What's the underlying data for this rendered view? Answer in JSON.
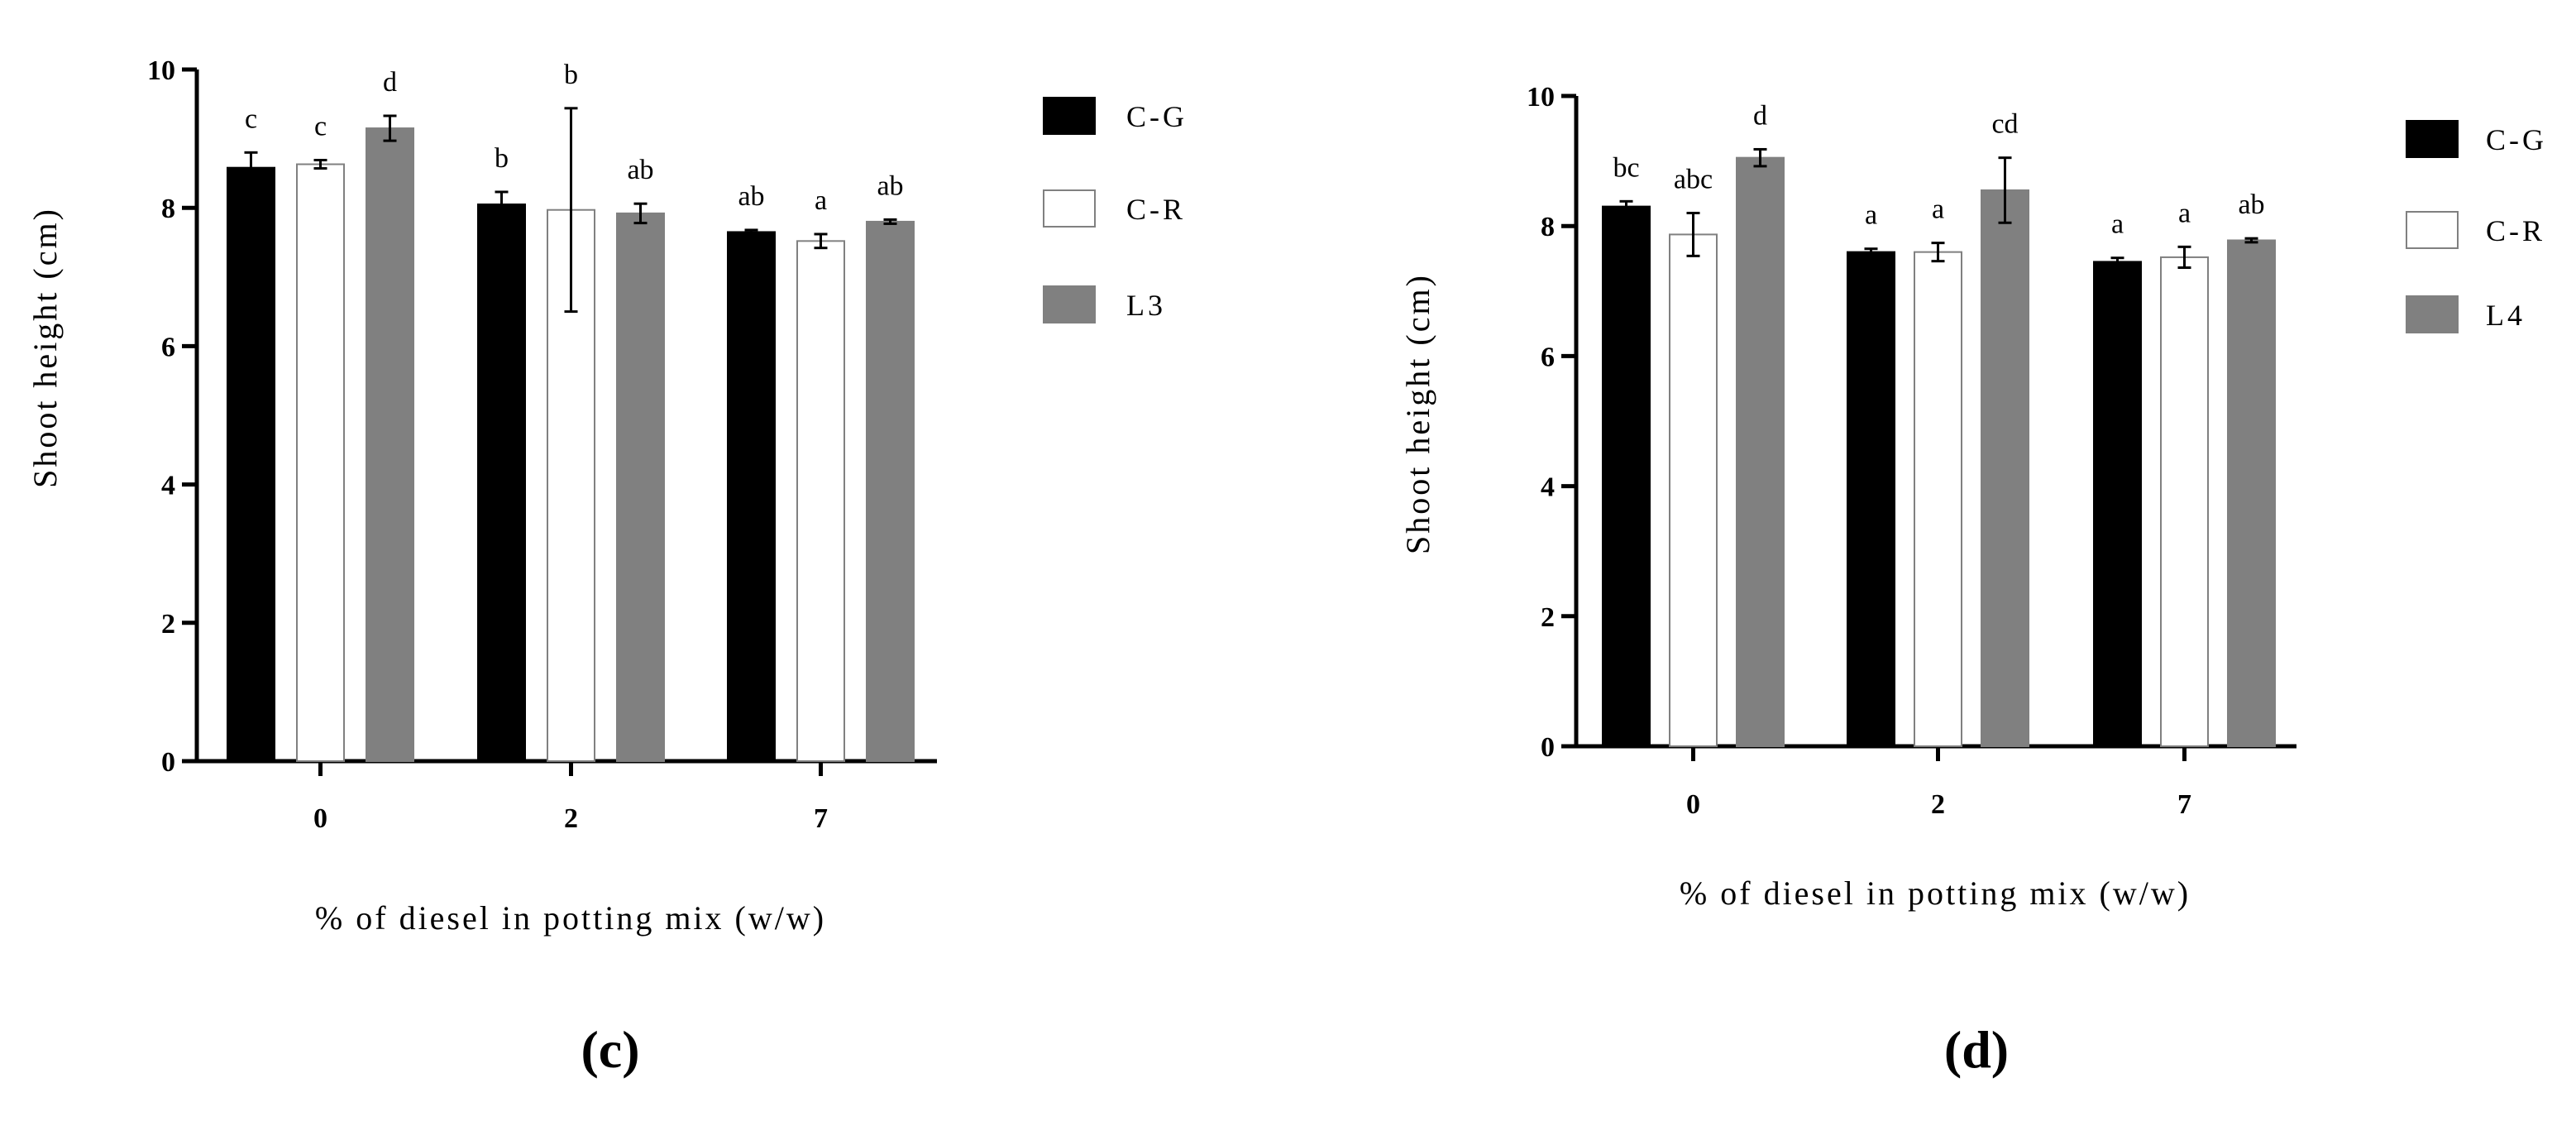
{
  "chart_data": [
    {
      "type": "bar",
      "panel_label": "(c)",
      "xlabel": "% of diesel in potting mix (w/w)",
      "ylabel": "Shoot height (cm)",
      "ylim": [
        0,
        10
      ],
      "yticks": [
        "0",
        "2",
        "4",
        "6",
        "8",
        "10"
      ],
      "categories": [
        "0",
        "2",
        "7"
      ],
      "legend_position": "right",
      "series": [
        {
          "name": "C-G",
          "fill": "#000000",
          "values": [
            8.58,
            8.05,
            7.65
          ],
          "errors": [
            0.22,
            0.18,
            0.03
          ],
          "letters": [
            "c",
            "b",
            "ab"
          ]
        },
        {
          "name": "C-R",
          "fill": "#ffffff",
          "values": [
            8.63,
            7.97,
            7.52
          ],
          "errors": [
            0.06,
            1.47,
            0.1
          ],
          "letters": [
            "c",
            "b",
            "a"
          ]
        },
        {
          "name": "L3",
          "fill": "#808080",
          "values": [
            9.15,
            7.92,
            7.8
          ],
          "errors": [
            0.18,
            0.14,
            0.03
          ],
          "letters": [
            "d",
            "ab",
            "ab"
          ]
        }
      ]
    },
    {
      "type": "bar",
      "panel_label": "(d)",
      "xlabel": "% of diesel in potting mix (w/w)",
      "ylabel": "Shoot height (cm)",
      "ylim": [
        0,
        10
      ],
      "yticks": [
        "0",
        "2",
        "4",
        "6",
        "8",
        "10"
      ],
      "categories": [
        "0",
        "2",
        "7"
      ],
      "legend_position": "right",
      "series": [
        {
          "name": "C-G",
          "fill": "#000000",
          "values": [
            8.3,
            7.6,
            7.45
          ],
          "errors": [
            0.08,
            0.05,
            0.06
          ],
          "letters": [
            "bc",
            "a",
            "a"
          ]
        },
        {
          "name": "C-R",
          "fill": "#ffffff",
          "values": [
            7.87,
            7.6,
            7.52
          ],
          "errors": [
            0.33,
            0.14,
            0.16
          ],
          "letters": [
            "abc",
            "a",
            "a"
          ]
        },
        {
          "name": "L4",
          "fill": "#808080",
          "values": [
            9.05,
            8.55,
            7.78
          ],
          "errors": [
            0.13,
            0.5,
            0.03
          ],
          "letters": [
            "d",
            "cd",
            "ab"
          ]
        }
      ]
    }
  ]
}
